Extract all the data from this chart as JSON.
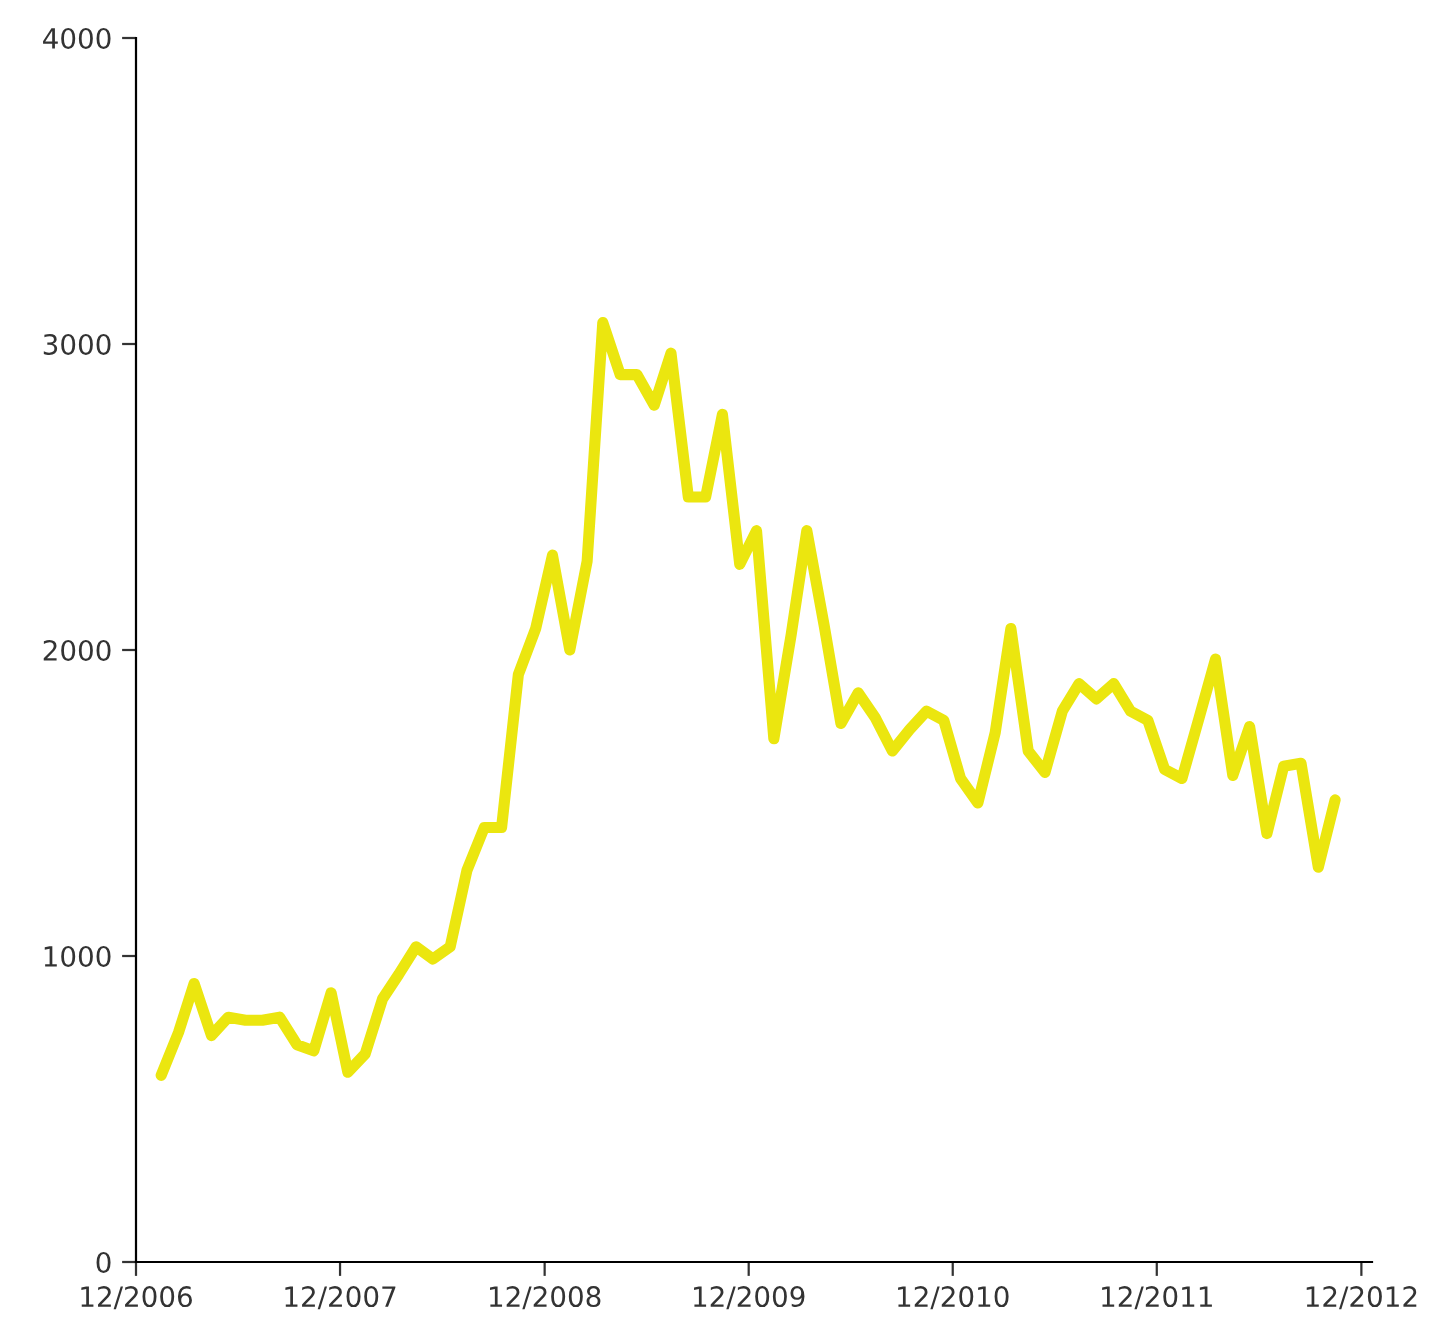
{
  "chart_data": {
    "type": "line",
    "x": [
      "2007-01-15",
      "2007-02-15",
      "2007-03-15",
      "2007-04-15",
      "2007-05-15",
      "2007-06-15",
      "2007-07-15",
      "2007-08-15",
      "2007-09-15",
      "2007-10-15",
      "2007-11-15",
      "2007-12-15",
      "2008-01-15",
      "2008-02-15",
      "2008-03-15",
      "2008-04-15",
      "2008-05-15",
      "2008-06-15",
      "2008-07-15",
      "2008-08-15",
      "2008-09-15",
      "2008-10-15",
      "2008-11-15",
      "2008-12-15",
      "2009-01-15",
      "2009-02-15",
      "2009-03-15",
      "2009-04-15",
      "2009-05-15",
      "2009-06-15",
      "2009-07-15",
      "2009-08-15",
      "2009-09-15",
      "2009-10-15",
      "2009-11-15",
      "2009-12-15",
      "2010-01-15",
      "2010-02-15",
      "2010-03-15",
      "2010-04-15",
      "2010-05-15",
      "2010-06-15",
      "2010-07-15",
      "2010-08-15",
      "2010-09-15",
      "2010-10-15",
      "2010-11-15",
      "2010-12-15",
      "2011-01-15",
      "2011-02-15",
      "2011-03-15",
      "2011-04-15",
      "2011-05-15",
      "2011-06-15",
      "2011-07-15",
      "2011-08-15",
      "2011-09-15",
      "2011-10-15",
      "2011-11-15",
      "2011-12-15",
      "2012-01-15",
      "2012-02-15",
      "2012-03-15",
      "2012-04-15",
      "2012-05-15",
      "2012-06-15",
      "2012-07-15",
      "2012-08-15",
      "2012-09-15",
      "2012-10-15"
    ],
    "series": [
      {
        "color": "#ebe60f",
        "values": [
          610,
          750,
          910,
          740,
          800,
          790,
          790,
          800,
          710,
          690,
          880,
          620,
          680,
          860,
          940,
          1030,
          990,
          1030,
          1280,
          1420,
          1420,
          1920,
          2070,
          2310,
          2000,
          2290,
          3070,
          2900,
          2900,
          2800,
          2970,
          2500,
          2500,
          2770,
          2280,
          2390,
          1710,
          2050,
          2390,
          2080,
          1760,
          1860,
          1780,
          1670,
          1740,
          1800,
          1770,
          1580,
          1500,
          1730,
          2070,
          1670,
          1600,
          1800,
          1890,
          1840,
          1890,
          1800,
          1770,
          1610,
          1580,
          1780,
          1970,
          1590,
          1750,
          1400,
          1620,
          1630,
          1290,
          1510
        ]
      }
    ],
    "xlim": [
      "2006-12-01",
      "2012-12-20"
    ],
    "xticks": [
      {
        "value": "2006-12-01",
        "label": "12/2006"
      },
      {
        "value": "2007-12-01",
        "label": "12/2007"
      },
      {
        "value": "2008-12-01",
        "label": "12/2008"
      },
      {
        "value": "2009-12-01",
        "label": "12/2009"
      },
      {
        "value": "2010-12-01",
        "label": "12/2010"
      },
      {
        "value": "2011-12-01",
        "label": "12/2011"
      },
      {
        "value": "2012-12-01",
        "label": "12/2012"
      }
    ],
    "ylim": [
      0,
      4000
    ],
    "yticks": [
      0,
      1000,
      2000,
      3000,
      4000
    ],
    "grid": false,
    "marker": "none",
    "line_style": "solid"
  }
}
